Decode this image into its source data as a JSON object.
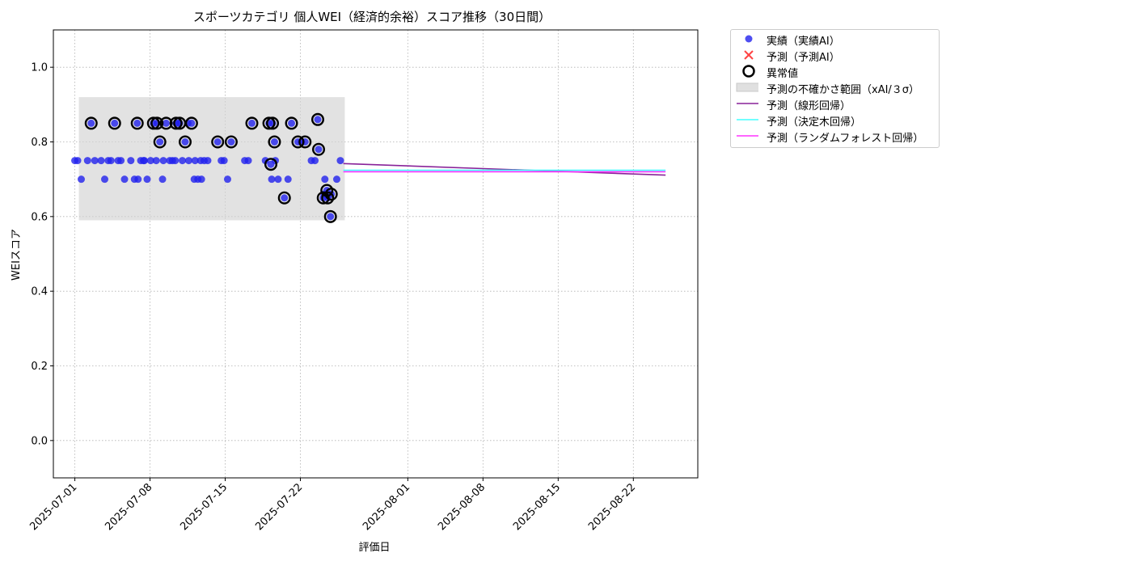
{
  "chart_data": {
    "type": "scatter",
    "title": "スポーツカテゴリ 個人WEI（経済的余裕）スコア推移（30日間）",
    "xlabel": "評価日",
    "ylabel": "WEIスコア",
    "xlim": [
      "2025-06-29",
      "2025-08-28"
    ],
    "ylim": [
      -0.1,
      1.1
    ],
    "yticks": [
      0.0,
      0.2,
      0.4,
      0.6,
      0.8,
      1.0
    ],
    "ytick_labels": [
      "0.0",
      "0.2",
      "0.4",
      "0.6",
      "0.8",
      "1.0"
    ],
    "xticks": [
      "2025-07-01",
      "2025-07-08",
      "2025-07-15",
      "2025-07-22",
      "2025-08-01",
      "2025-08-08",
      "2025-08-15",
      "2025-08-22"
    ],
    "grid": true,
    "legend_position": "outside-right",
    "uncertainty_band": {
      "x_start": "2025-07-01",
      "x_end": "2025-07-25",
      "y_low": 0.59,
      "y_high": 0.92
    },
    "series": [
      {
        "name": "実績（実績AI）",
        "kind": "scatter",
        "color": "#2222ee",
        "points": [
          {
            "x": "2025-07-01",
            "y": 0.75
          },
          {
            "x": "2025-07-01",
            "y": 0.7
          },
          {
            "x": "2025-07-01",
            "y": 0.75
          },
          {
            "x": "2025-07-02",
            "y": 0.75
          },
          {
            "x": "2025-07-02",
            "y": 0.85
          },
          {
            "x": "2025-07-02",
            "y": 0.75
          },
          {
            "x": "2025-07-03",
            "y": 0.7
          },
          {
            "x": "2025-07-03",
            "y": 0.75
          },
          {
            "x": "2025-07-04",
            "y": 0.75
          },
          {
            "x": "2025-07-04",
            "y": 0.85
          },
          {
            "x": "2025-07-04",
            "y": 0.75
          },
          {
            "x": "2025-07-05",
            "y": 0.75
          },
          {
            "x": "2025-07-05",
            "y": 0.7
          },
          {
            "x": "2025-07-05",
            "y": 0.75
          },
          {
            "x": "2025-07-06",
            "y": 0.7
          },
          {
            "x": "2025-07-06",
            "y": 0.7
          },
          {
            "x": "2025-07-06",
            "y": 0.75
          },
          {
            "x": "2025-07-06",
            "y": 0.85
          },
          {
            "x": "2025-07-07",
            "y": 0.75
          },
          {
            "x": "2025-07-07",
            "y": 0.75
          },
          {
            "x": "2025-07-07",
            "y": 0.7
          },
          {
            "x": "2025-07-07",
            "y": 0.75
          },
          {
            "x": "2025-07-08",
            "y": 0.75
          },
          {
            "x": "2025-07-08",
            "y": 0.85
          },
          {
            "x": "2025-07-08",
            "y": 0.85
          },
          {
            "x": "2025-07-08",
            "y": 0.8
          },
          {
            "x": "2025-07-08",
            "y": 0.75
          },
          {
            "x": "2025-07-09",
            "y": 0.75
          },
          {
            "x": "2025-07-09",
            "y": 0.75
          },
          {
            "x": "2025-07-09",
            "y": 0.85
          },
          {
            "x": "2025-07-09",
            "y": 0.7
          },
          {
            "x": "2025-07-10",
            "y": 0.85
          },
          {
            "x": "2025-07-10",
            "y": 0.85
          },
          {
            "x": "2025-07-10",
            "y": 0.75
          },
          {
            "x": "2025-07-10",
            "y": 0.85
          },
          {
            "x": "2025-07-10",
            "y": 0.75
          },
          {
            "x": "2025-07-11",
            "y": 0.75
          },
          {
            "x": "2025-07-11",
            "y": 0.75
          },
          {
            "x": "2025-07-11",
            "y": 0.8
          },
          {
            "x": "2025-07-11",
            "y": 0.85
          },
          {
            "x": "2025-07-11",
            "y": 0.85
          },
          {
            "x": "2025-07-12",
            "y": 0.75
          },
          {
            "x": "2025-07-12",
            "y": 0.7
          },
          {
            "x": "2025-07-12",
            "y": 0.7
          },
          {
            "x": "2025-07-12",
            "y": 0.7
          },
          {
            "x": "2025-07-12",
            "y": 0.75
          },
          {
            "x": "2025-07-13",
            "y": 0.75
          },
          {
            "x": "2025-07-13",
            "y": 0.75
          },
          {
            "x": "2025-07-14",
            "y": 0.75
          },
          {
            "x": "2025-07-14",
            "y": 0.8
          },
          {
            "x": "2025-07-14",
            "y": 0.75
          },
          {
            "x": "2025-07-15",
            "y": 0.8
          },
          {
            "x": "2025-07-15",
            "y": 0.7
          },
          {
            "x": "2025-07-16",
            "y": 0.75
          },
          {
            "x": "2025-07-17",
            "y": 0.85
          },
          {
            "x": "2025-07-17",
            "y": 0.75
          },
          {
            "x": "2025-07-18",
            "y": 0.75
          },
          {
            "x": "2025-07-19",
            "y": 0.85
          },
          {
            "x": "2025-07-19",
            "y": 0.85
          },
          {
            "x": "2025-07-19",
            "y": 0.75
          },
          {
            "x": "2025-07-19",
            "y": 0.7
          },
          {
            "x": "2025-07-19",
            "y": 0.7
          },
          {
            "x": "2025-07-19",
            "y": 0.8
          },
          {
            "x": "2025-07-19",
            "y": 0.74
          },
          {
            "x": "2025-07-20",
            "y": 0.7
          },
          {
            "x": "2025-07-20",
            "y": 0.65
          },
          {
            "x": "2025-07-21",
            "y": 0.85
          },
          {
            "x": "2025-07-21",
            "y": 0.8
          },
          {
            "x": "2025-07-22",
            "y": 0.8
          },
          {
            "x": "2025-07-22",
            "y": 0.8
          },
          {
            "x": "2025-07-23",
            "y": 0.78
          },
          {
            "x": "2025-07-23",
            "y": 0.75
          },
          {
            "x": "2025-07-23",
            "y": 0.75
          },
          {
            "x": "2025-07-23",
            "y": 0.86
          },
          {
            "x": "2025-07-24",
            "y": 0.7
          },
          {
            "x": "2025-07-24",
            "y": 0.66
          },
          {
            "x": "2025-07-24",
            "y": 0.65
          },
          {
            "x": "2025-07-24",
            "y": 0.66
          },
          {
            "x": "2025-07-24",
            "y": 0.6
          },
          {
            "x": "2025-07-24",
            "y": 0.67
          },
          {
            "x": "2025-07-24",
            "y": 0.65
          },
          {
            "x": "2025-07-25",
            "y": 0.75
          },
          {
            "x": "2025-07-25",
            "y": 0.7
          }
        ]
      },
      {
        "name": "予測（予測AI）",
        "kind": "x-marker",
        "color": "#ff4444",
        "points": []
      },
      {
        "name": "異常値",
        "kind": "outlier-ring",
        "color": "#000000",
        "points": [
          {
            "x": "2025-07-02",
            "y": 0.85
          },
          {
            "x": "2025-07-04",
            "y": 0.85
          },
          {
            "x": "2025-07-06",
            "y": 0.85
          },
          {
            "x": "2025-07-08",
            "y": 0.85
          },
          {
            "x": "2025-07-08",
            "y": 0.85
          },
          {
            "x": "2025-07-08",
            "y": 0.8
          },
          {
            "x": "2025-07-09",
            "y": 0.85
          },
          {
            "x": "2025-07-10",
            "y": 0.85
          },
          {
            "x": "2025-07-10",
            "y": 0.85
          },
          {
            "x": "2025-07-11",
            "y": 0.8
          },
          {
            "x": "2025-07-11",
            "y": 0.85
          },
          {
            "x": "2025-07-14",
            "y": 0.8
          },
          {
            "x": "2025-07-15",
            "y": 0.8
          },
          {
            "x": "2025-07-17",
            "y": 0.85
          },
          {
            "x": "2025-07-19",
            "y": 0.85
          },
          {
            "x": "2025-07-19",
            "y": 0.85
          },
          {
            "x": "2025-07-19",
            "y": 0.8
          },
          {
            "x": "2025-07-19",
            "y": 0.74
          },
          {
            "x": "2025-07-20",
            "y": 0.65
          },
          {
            "x": "2025-07-21",
            "y": 0.85
          },
          {
            "x": "2025-07-21",
            "y": 0.8
          },
          {
            "x": "2025-07-22",
            "y": 0.8
          },
          {
            "x": "2025-07-23",
            "y": 0.78
          },
          {
            "x": "2025-07-23",
            "y": 0.86
          },
          {
            "x": "2025-07-24",
            "y": 0.66
          },
          {
            "x": "2025-07-24",
            "y": 0.65
          },
          {
            "x": "2025-07-24",
            "y": 0.65
          },
          {
            "x": "2025-07-24",
            "y": 0.67
          },
          {
            "x": "2025-07-24",
            "y": 0.6
          }
        ]
      },
      {
        "name": "予測の不確かさ範囲（xAI/３σ）",
        "kind": "band",
        "color": "#d3d3d3"
      },
      {
        "name": "予測（線形回帰）",
        "kind": "line",
        "color": "#882299",
        "points": [
          {
            "x": "2025-07-26",
            "y": 0.742
          },
          {
            "x": "2025-08-25",
            "y": 0.711
          }
        ]
      },
      {
        "name": "予測（決定木回帰）",
        "kind": "line",
        "color": "#44ffff",
        "points": [
          {
            "x": "2025-07-26",
            "y": 0.724
          },
          {
            "x": "2025-08-25",
            "y": 0.724
          }
        ]
      },
      {
        "name": "予測（ランダムフォレスト回帰）",
        "kind": "line",
        "color": "#ff33ff",
        "points": [
          {
            "x": "2025-07-26",
            "y": 0.72
          },
          {
            "x": "2025-08-25",
            "y": 0.72
          }
        ]
      }
    ]
  }
}
